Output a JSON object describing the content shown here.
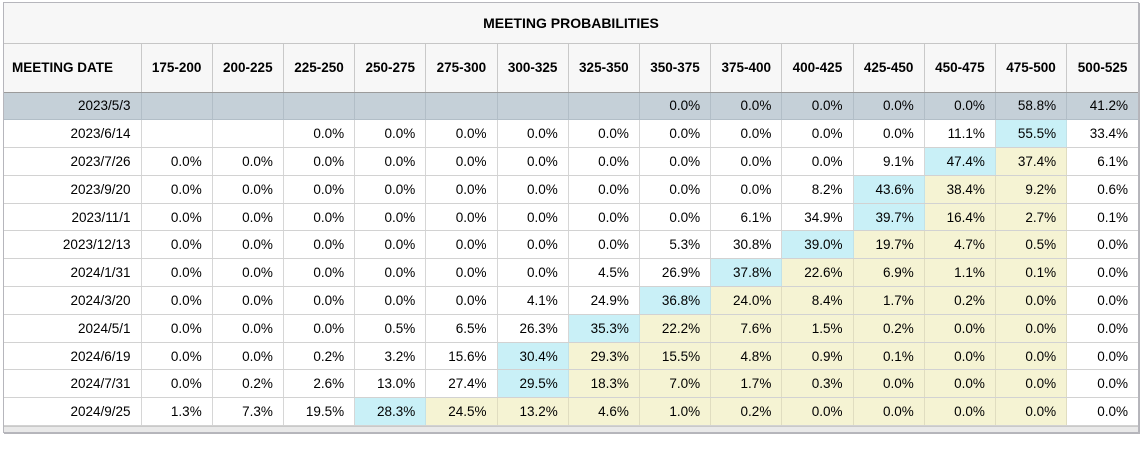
{
  "colors": {
    "selected_row": "#c5d0d8",
    "max_probability_cell": "#c9f0f7",
    "trailing_probability_cell": "#f5f3d3"
  },
  "table": {
    "title": "MEETING PROBABILITIES",
    "columns": [
      "MEETING DATE",
      "175-200",
      "200-225",
      "225-250",
      "250-275",
      "275-300",
      "300-325",
      "325-350",
      "350-375",
      "375-400",
      "400-425",
      "425-450",
      "450-475",
      "475-500",
      "500-525"
    ],
    "rows": [
      {
        "date": "2023/5/3",
        "selected": true,
        "values": [
          "",
          "",
          "",
          "",
          "",
          "",
          "",
          "0.0%",
          "0.0%",
          "0.0%",
          "0.0%",
          "0.0%",
          "58.8%",
          "41.2%"
        ],
        "highlights": [
          "",
          "",
          "",
          "",
          "",
          "",
          "",
          "",
          "",
          "",
          "",
          "",
          "",
          ""
        ]
      },
      {
        "date": "2023/6/14",
        "selected": false,
        "values": [
          "",
          "",
          "0.0%",
          "0.0%",
          "0.0%",
          "0.0%",
          "0.0%",
          "0.0%",
          "0.0%",
          "0.0%",
          "0.0%",
          "11.1%",
          "55.5%",
          "33.4%"
        ],
        "highlights": [
          "",
          "",
          "",
          "",
          "",
          "",
          "",
          "",
          "",
          "",
          "",
          "",
          "cyan",
          ""
        ]
      },
      {
        "date": "2023/7/26",
        "selected": false,
        "values": [
          "0.0%",
          "0.0%",
          "0.0%",
          "0.0%",
          "0.0%",
          "0.0%",
          "0.0%",
          "0.0%",
          "0.0%",
          "0.0%",
          "9.1%",
          "47.4%",
          "37.4%",
          "6.1%"
        ],
        "highlights": [
          "",
          "",
          "",
          "",
          "",
          "",
          "",
          "",
          "",
          "",
          "",
          "cyan",
          "yellow",
          ""
        ]
      },
      {
        "date": "2023/9/20",
        "selected": false,
        "values": [
          "0.0%",
          "0.0%",
          "0.0%",
          "0.0%",
          "0.0%",
          "0.0%",
          "0.0%",
          "0.0%",
          "0.0%",
          "8.2%",
          "43.6%",
          "38.4%",
          "9.2%",
          "0.6%"
        ],
        "highlights": [
          "",
          "",
          "",
          "",
          "",
          "",
          "",
          "",
          "",
          "",
          "cyan",
          "yellow",
          "yellow",
          ""
        ]
      },
      {
        "date": "2023/11/1",
        "selected": false,
        "values": [
          "0.0%",
          "0.0%",
          "0.0%",
          "0.0%",
          "0.0%",
          "0.0%",
          "0.0%",
          "0.0%",
          "6.1%",
          "34.9%",
          "39.7%",
          "16.4%",
          "2.7%",
          "0.1%"
        ],
        "highlights": [
          "",
          "",
          "",
          "",
          "",
          "",
          "",
          "",
          "",
          "",
          "cyan",
          "yellow",
          "yellow",
          ""
        ]
      },
      {
        "date": "2023/12/13",
        "selected": false,
        "values": [
          "0.0%",
          "0.0%",
          "0.0%",
          "0.0%",
          "0.0%",
          "0.0%",
          "0.0%",
          "5.3%",
          "30.8%",
          "39.0%",
          "19.7%",
          "4.7%",
          "0.5%",
          "0.0%"
        ],
        "highlights": [
          "",
          "",
          "",
          "",
          "",
          "",
          "",
          "",
          "",
          "cyan",
          "yellow",
          "yellow",
          "yellow",
          ""
        ]
      },
      {
        "date": "2024/1/31",
        "selected": false,
        "values": [
          "0.0%",
          "0.0%",
          "0.0%",
          "0.0%",
          "0.0%",
          "0.0%",
          "4.5%",
          "26.9%",
          "37.8%",
          "22.6%",
          "6.9%",
          "1.1%",
          "0.1%",
          "0.0%"
        ],
        "highlights": [
          "",
          "",
          "",
          "",
          "",
          "",
          "",
          "",
          "cyan",
          "yellow",
          "yellow",
          "yellow",
          "yellow",
          ""
        ]
      },
      {
        "date": "2024/3/20",
        "selected": false,
        "values": [
          "0.0%",
          "0.0%",
          "0.0%",
          "0.0%",
          "0.0%",
          "4.1%",
          "24.9%",
          "36.8%",
          "24.0%",
          "8.4%",
          "1.7%",
          "0.2%",
          "0.0%",
          "0.0%"
        ],
        "highlights": [
          "",
          "",
          "",
          "",
          "",
          "",
          "",
          "cyan",
          "yellow",
          "yellow",
          "yellow",
          "yellow",
          "yellow",
          ""
        ]
      },
      {
        "date": "2024/5/1",
        "selected": false,
        "values": [
          "0.0%",
          "0.0%",
          "0.0%",
          "0.5%",
          "6.5%",
          "26.3%",
          "35.3%",
          "22.2%",
          "7.6%",
          "1.5%",
          "0.2%",
          "0.0%",
          "0.0%",
          "0.0%"
        ],
        "highlights": [
          "",
          "",
          "",
          "",
          "",
          "",
          "cyan",
          "yellow",
          "yellow",
          "yellow",
          "yellow",
          "yellow",
          "yellow",
          ""
        ]
      },
      {
        "date": "2024/6/19",
        "selected": false,
        "values": [
          "0.0%",
          "0.0%",
          "0.2%",
          "3.2%",
          "15.6%",
          "30.4%",
          "29.3%",
          "15.5%",
          "4.8%",
          "0.9%",
          "0.1%",
          "0.0%",
          "0.0%",
          "0.0%"
        ],
        "highlights": [
          "",
          "",
          "",
          "",
          "",
          "cyan",
          "yellow",
          "yellow",
          "yellow",
          "yellow",
          "yellow",
          "yellow",
          "yellow",
          ""
        ]
      },
      {
        "date": "2024/7/31",
        "selected": false,
        "values": [
          "0.0%",
          "0.2%",
          "2.6%",
          "13.0%",
          "27.4%",
          "29.5%",
          "18.3%",
          "7.0%",
          "1.7%",
          "0.3%",
          "0.0%",
          "0.0%",
          "0.0%",
          "0.0%"
        ],
        "highlights": [
          "",
          "",
          "",
          "",
          "",
          "cyan",
          "yellow",
          "yellow",
          "yellow",
          "yellow",
          "yellow",
          "yellow",
          "yellow",
          ""
        ]
      },
      {
        "date": "2024/9/25",
        "selected": false,
        "values": [
          "1.3%",
          "7.3%",
          "19.5%",
          "28.3%",
          "24.5%",
          "13.2%",
          "4.6%",
          "1.0%",
          "0.2%",
          "0.0%",
          "0.0%",
          "0.0%",
          "0.0%",
          "0.0%"
        ],
        "highlights": [
          "",
          "",
          "",
          "cyan",
          "yellow",
          "yellow",
          "yellow",
          "yellow",
          "yellow",
          "yellow",
          "yellow",
          "yellow",
          "yellow",
          ""
        ]
      }
    ]
  }
}
